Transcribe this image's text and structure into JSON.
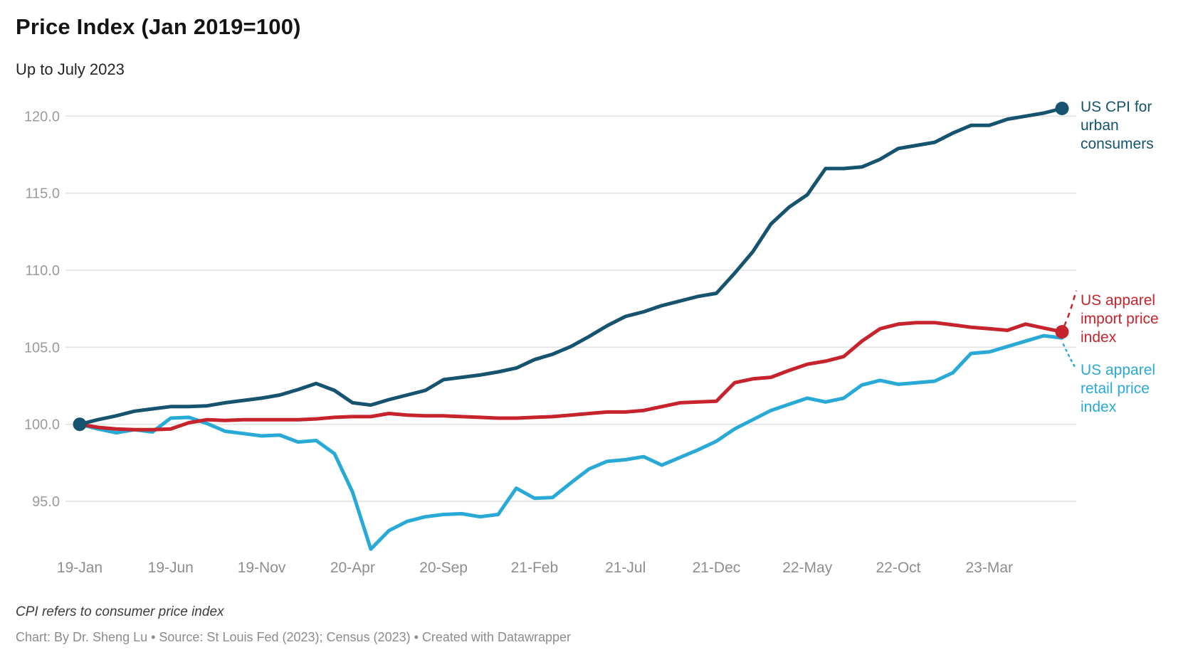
{
  "header": {
    "title": "Price Index (Jan 2019=100)",
    "subtitle": "Up to July 2023"
  },
  "footer": {
    "note": "CPI refers to consumer price index",
    "credit": "Chart: By Dr. Sheng Lu • Source: St Louis Fed (2023); Census (2023) • Created with Datawrapper"
  },
  "chart_data": {
    "type": "line",
    "title": "Price Index (Jan 2019=100)",
    "subtitle": "Up to July 2023",
    "x_unit": "month",
    "months": [
      "2019-01",
      "2019-02",
      "2019-03",
      "2019-04",
      "2019-05",
      "2019-06",
      "2019-07",
      "2019-08",
      "2019-09",
      "2019-10",
      "2019-11",
      "2019-12",
      "2020-01",
      "2020-02",
      "2020-03",
      "2020-04",
      "2020-05",
      "2020-06",
      "2020-07",
      "2020-08",
      "2020-09",
      "2020-10",
      "2020-11",
      "2020-12",
      "2021-01",
      "2021-02",
      "2021-03",
      "2021-04",
      "2021-05",
      "2021-06",
      "2021-07",
      "2021-08",
      "2021-09",
      "2021-10",
      "2021-11",
      "2021-12",
      "2022-01",
      "2022-02",
      "2022-03",
      "2022-04",
      "2022-05",
      "2022-06",
      "2022-07",
      "2022-08",
      "2022-09",
      "2022-10",
      "2022-11",
      "2022-12",
      "2023-01",
      "2023-02",
      "2023-03",
      "2023-04",
      "2023-05",
      "2023-06",
      "2023-07"
    ],
    "x_tick_positions": [
      0,
      5,
      10,
      15,
      20,
      25,
      30,
      35,
      40,
      45,
      50
    ],
    "x_tick_labels": [
      "19-Jan",
      "19-Jun",
      "19-Nov",
      "20-Apr",
      "20-Sep",
      "21-Feb",
      "21-Jul",
      "21-Dec",
      "22-May",
      "22-Oct",
      "23-Mar"
    ],
    "y_ticks": [
      {
        "value": 95,
        "label": "95.0"
      },
      {
        "value": 100,
        "label": "100.0"
      },
      {
        "value": 105,
        "label": "105.0"
      },
      {
        "value": 110,
        "label": "110.0"
      },
      {
        "value": 115,
        "label": "115.0"
      },
      {
        "value": 120,
        "label": "120.0"
      }
    ],
    "ylim": [
      91.5,
      121.5
    ],
    "grid": "horizontal",
    "legend_position": "right-annotations",
    "series": [
      {
        "id": "retail",
        "name": "US apparel retail price index",
        "color": "#29A9D6",
        "dots": [],
        "values": [
          100.0,
          99.7,
          99.45,
          99.65,
          99.5,
          100.4,
          100.45,
          100.05,
          99.55,
          99.4,
          99.25,
          99.3,
          98.85,
          98.95,
          98.1,
          95.6,
          91.9,
          93.1,
          93.7,
          94.0,
          94.15,
          94.2,
          94.0,
          94.15,
          95.85,
          95.2,
          95.25,
          96.2,
          97.1,
          97.6,
          97.7,
          97.9,
          97.35,
          97.85,
          98.35,
          98.9,
          99.7,
          100.3,
          100.9,
          101.3,
          101.7,
          101.45,
          101.7,
          102.55,
          102.85,
          102.6,
          102.7,
          102.8,
          103.35,
          104.6,
          104.7,
          105.05,
          105.4,
          105.75,
          105.6
        ]
      },
      {
        "id": "import",
        "name": "US apparel import price index",
        "color": "#C7232C",
        "dots": [
          "end"
        ],
        "values": [
          100.0,
          99.8,
          99.7,
          99.65,
          99.65,
          99.7,
          100.1,
          100.3,
          100.25,
          100.3,
          100.3,
          100.3,
          100.3,
          100.35,
          100.45,
          100.5,
          100.5,
          100.7,
          100.6,
          100.55,
          100.55,
          100.5,
          100.45,
          100.4,
          100.4,
          100.45,
          100.5,
          100.6,
          100.7,
          100.8,
          100.8,
          100.9,
          101.15,
          101.4,
          101.45,
          101.5,
          102.7,
          102.95,
          103.05,
          103.5,
          103.9,
          104.1,
          104.4,
          105.4,
          106.2,
          106.5,
          106.6,
          106.6,
          106.45,
          106.3,
          106.2,
          106.1,
          106.5,
          106.25,
          106.0
        ]
      },
      {
        "id": "cpi",
        "name": "US CPI for urban consumers",
        "color": "#15536F",
        "dots": [
          "start",
          "end"
        ],
        "values": [
          100.0,
          100.3,
          100.55,
          100.85,
          101.0,
          101.15,
          101.15,
          101.2,
          101.4,
          101.55,
          101.7,
          101.9,
          102.25,
          102.65,
          102.2,
          101.4,
          101.25,
          101.6,
          101.9,
          102.2,
          102.9,
          103.05,
          103.2,
          103.4,
          103.65,
          104.2,
          104.55,
          105.05,
          105.7,
          106.4,
          107.0,
          107.3,
          107.7,
          108.0,
          108.3,
          108.5,
          109.8,
          111.2,
          113.0,
          114.1,
          114.9,
          116.6,
          116.6,
          116.7,
          117.2,
          117.9,
          118.1,
          118.3,
          118.9,
          119.4,
          119.4,
          119.8,
          120.0,
          120.2,
          120.5
        ]
      }
    ],
    "annotations": [
      {
        "series": "cpi",
        "text": "US CPI for urban consumers",
        "color": "#15536F",
        "leader": "none"
      },
      {
        "series": "import",
        "text": "US apparel import price index",
        "color": "#C7232C",
        "leader": "dashed"
      },
      {
        "series": "retail",
        "text": "US apparel retail price index",
        "color": "#29A9D6",
        "leader": "dotted"
      }
    ]
  }
}
